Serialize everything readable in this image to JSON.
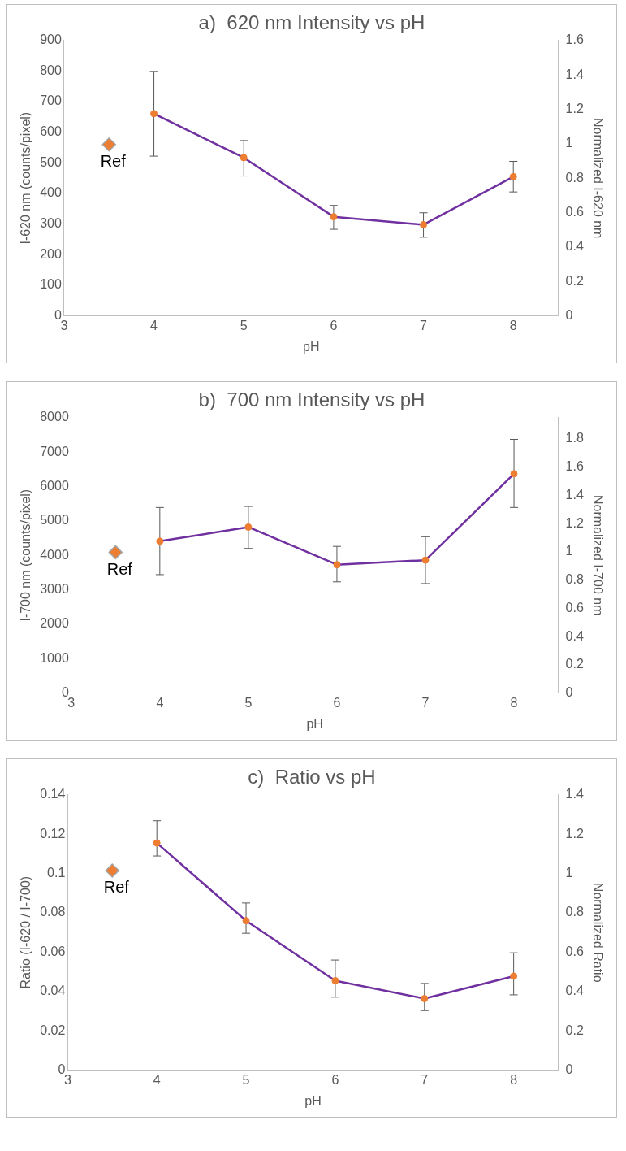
{
  "chart_data": [
    {
      "type": "line",
      "title": "a)  620 nm Intensity vs pH",
      "xlabel": "pH",
      "ylabel": "I-620 nm (counts/pixel)",
      "y2label": "Normalized I-620 nm",
      "xlim": [
        3,
        8.5
      ],
      "xticks": [
        3,
        4,
        5,
        6,
        7,
        8
      ],
      "ylim": [
        0,
        900
      ],
      "yticks": [
        0,
        100,
        200,
        300,
        400,
        500,
        600,
        700,
        800,
        900
      ],
      "y2lim": [
        0,
        1.6
      ],
      "y2ticks": [
        0,
        0.2,
        0.4,
        0.6,
        0.8,
        1,
        1.2,
        1.4,
        1.6
      ],
      "series": [
        {
          "type": "line",
          "color": "#7030a0",
          "colors": [
            "#ed7d31",
            "#ed7d31",
            "#ed7d31",
            "#ed7d31",
            "#ed7d31"
          ],
          "marker": "circle",
          "x": [
            4,
            5,
            6,
            7,
            8
          ],
          "values": [
            661,
            517,
            324,
            298,
            455
          ],
          "errors": [
            [
              522,
              799
            ],
            [
              457,
              573
            ],
            [
              283,
              361
            ],
            [
              257,
              337
            ],
            [
              405,
              505
            ]
          ]
        },
        {
          "type": "scatter",
          "name": "Ref",
          "color": "#ed7d31",
          "marker": "diamond",
          "x": [
            3.5
          ],
          "values": [
            560
          ]
        }
      ]
    },
    {
      "type": "line",
      "title": "b)  700 nm Intensity vs pH",
      "xlabel": "pH",
      "ylabel": "I-700 nm (counts/pixel)",
      "y2label": "Normalized I-700 nm",
      "xlim": [
        3,
        8.5
      ],
      "xticks": [
        3,
        4,
        5,
        6,
        7,
        8
      ],
      "ylim": [
        0,
        8000
      ],
      "yticks": [
        0,
        1000,
        2000,
        3000,
        4000,
        5000,
        6000,
        7000,
        8000
      ],
      "y2lim": [
        0,
        1.95
      ],
      "y2ticks": [
        0,
        0.2,
        0.4,
        0.6,
        0.8,
        1,
        1.2,
        1.4,
        1.6,
        1.8
      ],
      "series": [
        {
          "type": "line",
          "color": "#7030a0",
          "colors": [
            "#ed7d31",
            "#ed7d31",
            "#ed7d31",
            "#ed7d31",
            "#ed7d31"
          ],
          "marker": "circle",
          "x": [
            4,
            5,
            6,
            7,
            8
          ],
          "values": [
            4410,
            4820,
            3730,
            3860,
            6370
          ],
          "errors": [
            [
              3440,
              5390
            ],
            [
              4200,
              5420
            ],
            [
              3230,
              4260
            ],
            [
              3180,
              4540
            ],
            [
              5390,
              7370
            ]
          ]
        },
        {
          "type": "scatter",
          "name": "Ref",
          "color": "#ed7d31",
          "marker": "diamond",
          "x": [
            3.5
          ],
          "values": [
            4090
          ]
        }
      ]
    },
    {
      "type": "line",
      "title": "c)  Ratio vs pH",
      "xlabel": "pH",
      "ylabel": "Ratio (I-620 / I-700)",
      "y2label": "Normalized Ratio",
      "xlim": [
        3,
        8.5
      ],
      "xticks": [
        3,
        4,
        5,
        6,
        7,
        8
      ],
      "ylim": [
        0,
        0.14
      ],
      "yticks": [
        0,
        0.02,
        0.04,
        0.06,
        0.08,
        0.1,
        0.12,
        0.14
      ],
      "y2lim": [
        0,
        1.4
      ],
      "y2ticks": [
        0,
        0.2,
        0.4,
        0.6,
        0.8,
        1,
        1.2,
        1.4
      ],
      "series": [
        {
          "type": "line",
          "color": "#7030a0",
          "colors": [
            "#ed7d31",
            "#ed7d31",
            "#ed7d31",
            "#ed7d31",
            "#ed7d31"
          ],
          "marker": "circle",
          "x": [
            4,
            5,
            6,
            7,
            8
          ],
          "values": [
            0.1155,
            0.076,
            0.0455,
            0.0364,
            0.0478
          ],
          "errors": [
            [
              0.1089,
              0.1268
            ],
            [
              0.0696,
              0.085
            ],
            [
              0.0371,
              0.056
            ],
            [
              0.0303,
              0.0441
            ],
            [
              0.0383,
              0.0597
            ]
          ]
        },
        {
          "type": "scatter",
          "name": "Ref",
          "color": "#ed7d31",
          "marker": "diamond",
          "x": [
            3.5
          ],
          "values": [
            0.1015
          ]
        }
      ]
    }
  ]
}
